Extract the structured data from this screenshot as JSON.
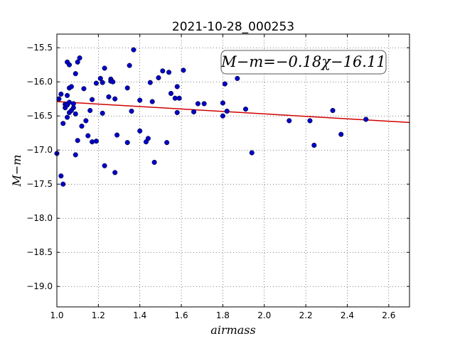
{
  "chart_data": {
    "type": "scatter",
    "title": "2021-10-28_000253",
    "xlabel": "airmass",
    "ylabel": "M−m",
    "annotation": "M−m=−0.18χ−16.11",
    "xlim": [
      1.0,
      2.7
    ],
    "ylim": [
      -19.3,
      -15.3
    ],
    "y_inverted": true,
    "grid": true,
    "xticks": [
      1.0,
      1.2,
      1.4,
      1.6,
      1.8,
      2.0,
      2.2,
      2.4,
      2.6
    ],
    "xtick_labels": [
      "1.0",
      "1.2",
      "1.4",
      "1.6",
      "1.8",
      "2.0",
      "2.2",
      "2.4",
      "2.6"
    ],
    "yticks": [
      -15.5,
      -16.0,
      -16.5,
      -17.0,
      -17.5,
      -18.0,
      -18.5,
      -19.0
    ],
    "ytick_labels": [
      "−15.5",
      "−16.0",
      "−16.5",
      "−17.0",
      "−17.5",
      "−18.0",
      "−18.5",
      "−19.0"
    ],
    "fit": {
      "slope": -0.18,
      "intercept": -16.11,
      "color": "#d10000"
    },
    "marker_color": "#0000c8",
    "points": [
      [
        1.0,
        -17.05
      ],
      [
        1.01,
        -16.25
      ],
      [
        1.02,
        -16.18
      ],
      [
        1.02,
        -17.38
      ],
      [
        1.03,
        -17.5
      ],
      [
        1.03,
        -16.61
      ],
      [
        1.04,
        -16.33
      ],
      [
        1.04,
        -16.38
      ],
      [
        1.05,
        -16.52
      ],
      [
        1.05,
        -15.71
      ],
      [
        1.05,
        -16.2
      ],
      [
        1.05,
        -16.34
      ],
      [
        1.06,
        -16.09
      ],
      [
        1.06,
        -16.3
      ],
      [
        1.06,
        -16.45
      ],
      [
        1.06,
        -15.75
      ],
      [
        1.07,
        -16.07
      ],
      [
        1.07,
        -16.42
      ],
      [
        1.08,
        -16.32
      ],
      [
        1.08,
        -16.38
      ],
      [
        1.09,
        -16.47
      ],
      [
        1.09,
        -17.07
      ],
      [
        1.09,
        -15.88
      ],
      [
        1.1,
        -16.86
      ],
      [
        1.1,
        -15.71
      ],
      [
        1.11,
        -15.65
      ],
      [
        1.12,
        -16.65
      ],
      [
        1.13,
        -16.1
      ],
      [
        1.14,
        -16.57
      ],
      [
        1.15,
        -16.79
      ],
      [
        1.16,
        -16.42
      ],
      [
        1.17,
        -16.88
      ],
      [
        1.17,
        -16.26
      ],
      [
        1.19,
        -16.87
      ],
      [
        1.19,
        -16.02
      ],
      [
        1.21,
        -15.95
      ],
      [
        1.22,
        -16.46
      ],
      [
        1.22,
        -16.01
      ],
      [
        1.23,
        -17.23
      ],
      [
        1.23,
        -15.8
      ],
      [
        1.25,
        -16.22
      ],
      [
        1.26,
        -15.96
      ],
      [
        1.26,
        -15.99
      ],
      [
        1.27,
        -16.0
      ],
      [
        1.28,
        -16.25
      ],
      [
        1.28,
        -17.33
      ],
      [
        1.29,
        -16.78
      ],
      [
        1.34,
        -16.09
      ],
      [
        1.34,
        -16.89
      ],
      [
        1.35,
        -15.76
      ],
      [
        1.36,
        -16.43
      ],
      [
        1.37,
        -15.53
      ],
      [
        1.4,
        -16.27
      ],
      [
        1.4,
        -16.72
      ],
      [
        1.43,
        -16.88
      ],
      [
        1.44,
        -16.83
      ],
      [
        1.45,
        -16.01
      ],
      [
        1.46,
        -16.29
      ],
      [
        1.47,
        -17.18
      ],
      [
        1.49,
        -15.94
      ],
      [
        1.51,
        -15.84
      ],
      [
        1.53,
        -16.89
      ],
      [
        1.54,
        -15.86
      ],
      [
        1.55,
        -16.17
      ],
      [
        1.57,
        -16.24
      ],
      [
        1.58,
        -16.45
      ],
      [
        1.58,
        -16.07
      ],
      [
        1.59,
        -16.24
      ],
      [
        1.61,
        -15.83
      ],
      [
        1.66,
        -16.44
      ],
      [
        1.68,
        -16.32
      ],
      [
        1.71,
        -16.32
      ],
      [
        1.8,
        -16.5
      ],
      [
        1.8,
        -16.31
      ],
      [
        1.81,
        -16.03
      ],
      [
        1.82,
        -16.43
      ],
      [
        1.87,
        -15.95
      ],
      [
        1.91,
        -16.4
      ],
      [
        1.94,
        -17.04
      ],
      [
        2.12,
        -16.57
      ],
      [
        2.22,
        -16.57
      ],
      [
        2.24,
        -16.93
      ],
      [
        2.33,
        -16.42
      ],
      [
        2.37,
        -16.77
      ],
      [
        2.49,
        -16.55
      ]
    ]
  }
}
